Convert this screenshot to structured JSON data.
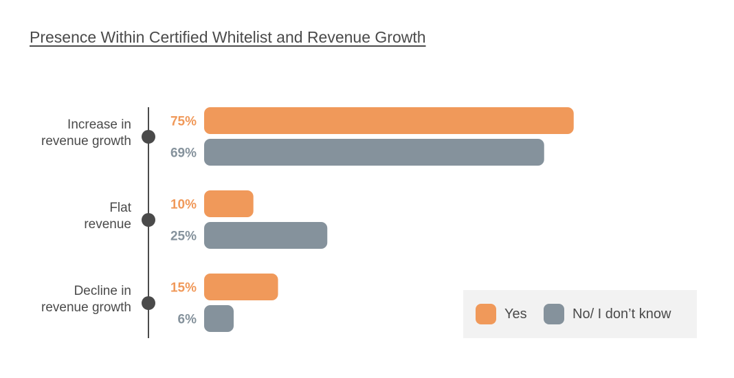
{
  "title": "Presence Within Certified Whitelist and Revenue Growth",
  "colors": {
    "yes": "#f0995a",
    "no": "#85929c",
    "axis": "#4a4a4a",
    "label": "#4a4a4a"
  },
  "legend": {
    "yes_label": "Yes",
    "no_label": "No/ I don’t know"
  },
  "chart_data": {
    "type": "bar",
    "orientation": "horizontal",
    "title": "Presence Within Certified Whitelist and Revenue Growth",
    "categories": [
      [
        "Increase in",
        "revenue growth"
      ],
      [
        "Flat",
        "revenue"
      ],
      [
        "Decline in",
        "revenue growth"
      ]
    ],
    "series": [
      {
        "name": "Yes",
        "values": [
          75,
          10,
          15
        ],
        "labels": [
          "75%",
          "10%",
          "15%"
        ],
        "color": "#f0995a"
      },
      {
        "name": "No/ I don’t know",
        "values": [
          69,
          25,
          6
        ],
        "labels": [
          "69%",
          "25%",
          "6%"
        ],
        "color": "#85929c"
      }
    ],
    "xlim": [
      0,
      100
    ],
    "grid": false,
    "legend_position": "bottom-right"
  }
}
